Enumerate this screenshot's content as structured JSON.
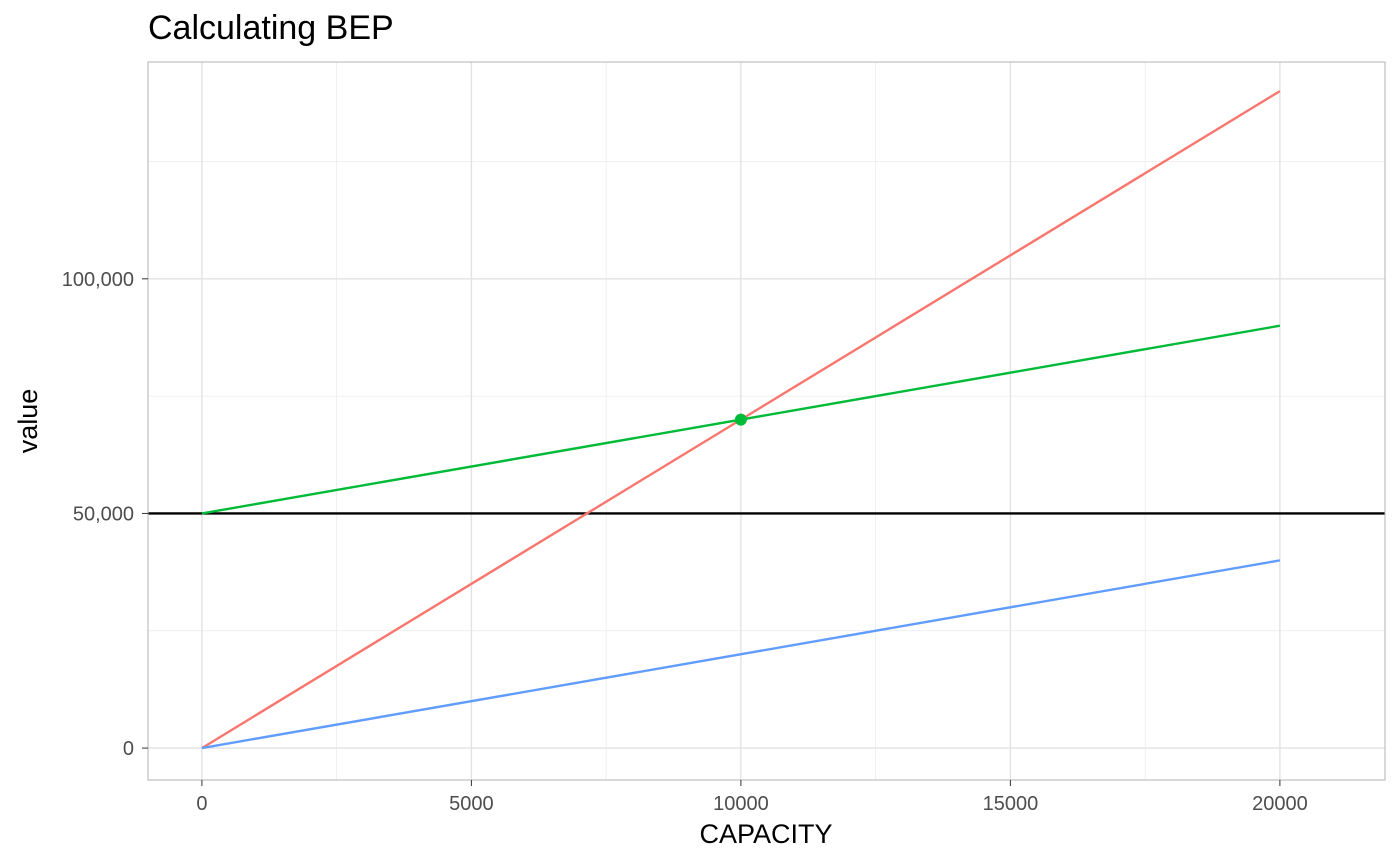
{
  "chart_data": {
    "type": "line",
    "title": "Calculating BEP",
    "xlabel": "CAPACITY",
    "ylabel": "value",
    "x_ticks": [
      0,
      5000,
      10000,
      15000,
      20000
    ],
    "x_tick_labels": [
      "0",
      "5000",
      "10000",
      "15000",
      "20000"
    ],
    "y_ticks": [
      0,
      50000,
      100000
    ],
    "y_tick_labels": [
      "0",
      "50,000",
      "100,000"
    ],
    "xlim": [
      -1000,
      21950
    ],
    "ylim": [
      -6800,
      146200
    ],
    "grid": true,
    "legend": "none",
    "series": [
      {
        "color": "#F8766D",
        "x": [
          0,
          20000
        ],
        "values": [
          0,
          140000
        ]
      },
      {
        "color": "#00BA38",
        "x": [
          0,
          20000
        ],
        "values": [
          50000,
          90000
        ]
      },
      {
        "color": "#619CFF",
        "x": [
          0,
          20000
        ],
        "values": [
          0,
          40000
        ]
      }
    ],
    "hlines": [
      {
        "value": 50000,
        "color": "#000000"
      }
    ],
    "points": [
      {
        "x": 10000,
        "y": 70000,
        "color": "#00BA38"
      }
    ],
    "colors": {
      "grid": "#ebebeb",
      "panel_border": "#b3b3b3",
      "tick_text": "#4d4d4d"
    }
  }
}
